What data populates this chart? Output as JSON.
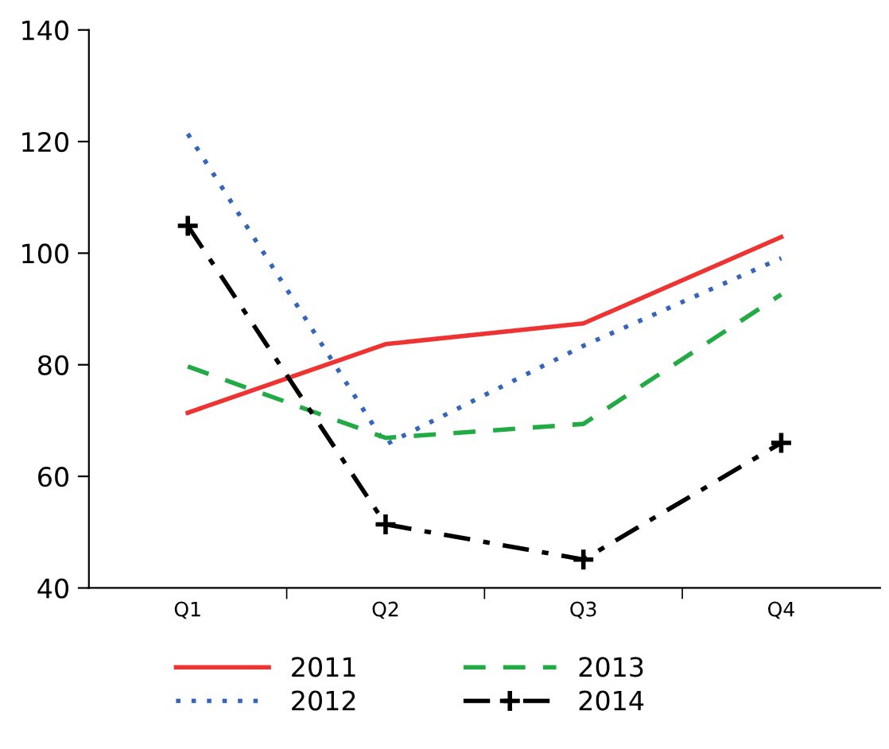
{
  "chart_data": {
    "type": "line",
    "categories": [
      "Q1",
      "Q2",
      "Q3",
      "Q4"
    ],
    "series": [
      {
        "name": "2011",
        "color": "#ee3333",
        "line_style": "solid",
        "values": [
          71.4,
          83.7,
          87.4,
          102.9
        ]
      },
      {
        "name": "2012",
        "color": "#3366bb",
        "line_style": "dotted",
        "values": [
          121.4,
          65.7,
          83.4,
          99.1
        ]
      },
      {
        "name": "2013",
        "color": "#22aa44",
        "line_style": "dashed",
        "values": [
          79.7,
          66.9,
          69.4,
          92.6
        ]
      },
      {
        "name": "2014",
        "color": "#000000",
        "line_style": "dashdot",
        "marker": "cross",
        "values": [
          104.9,
          51.4,
          45.1,
          66.0
        ]
      }
    ],
    "ylim": [
      40,
      140
    ],
    "yticks": [
      40,
      60,
      80,
      100,
      120,
      140
    ],
    "grid": false,
    "legend": "bottom"
  }
}
